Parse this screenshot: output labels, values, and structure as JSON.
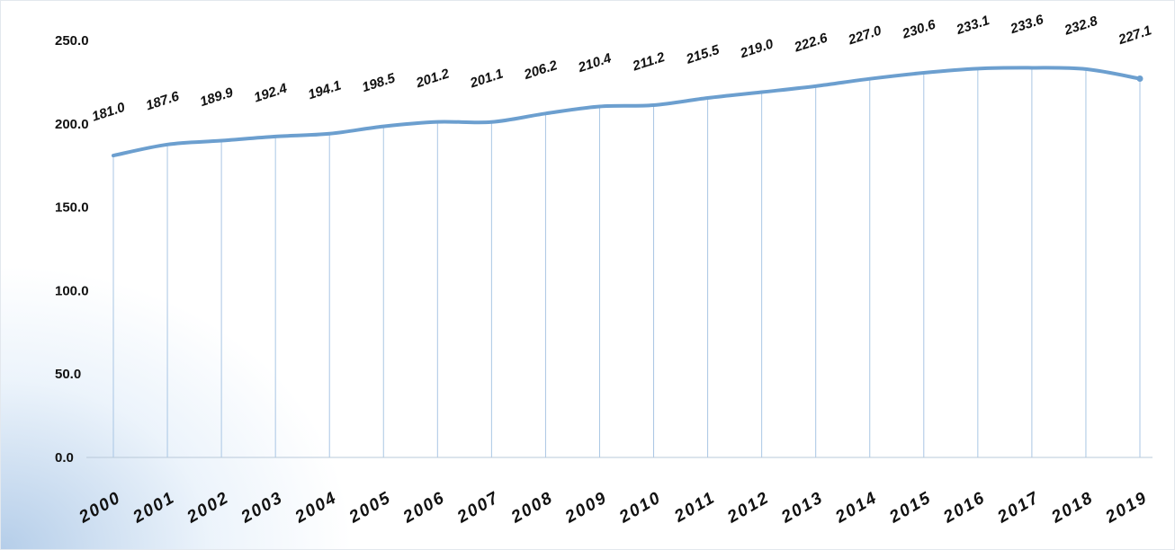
{
  "chart_data": {
    "type": "line",
    "title": "",
    "xlabel": "",
    "ylabel": "",
    "ylim": [
      0,
      250
    ],
    "yticks": [
      "0.0",
      "50.0",
      "100.0",
      "150.0",
      "200.0",
      "250.0"
    ],
    "x": [
      "2000",
      "2001",
      "2002",
      "2003",
      "2004",
      "2005",
      "2006",
      "2007",
      "2008",
      "2009",
      "2010",
      "2011",
      "2012",
      "2013",
      "2014",
      "2015",
      "2016",
      "2017",
      "2018",
      "2019"
    ],
    "series": [
      {
        "values": [
          181.0,
          187.6,
          189.9,
          192.4,
          194.1,
          198.5,
          201.2,
          201.1,
          206.2,
          210.4,
          211.2,
          215.5,
          219.0,
          222.6,
          227.0,
          230.6,
          233.1,
          233.6,
          232.8,
          227.1
        ],
        "labels": [
          "181.0",
          "187.6",
          "189.9",
          "192.4",
          "194.1",
          "198.5",
          "201.2",
          "201.1",
          "206.2",
          "210.4",
          "211.2",
          "215.5",
          "219.0",
          "222.6",
          "227.0",
          "230.6",
          "233.1",
          "233.6",
          "232.8",
          "227.1"
        ],
        "color": "#6c9fcf"
      }
    ],
    "grid": "vertical drop lines",
    "legend": "none"
  }
}
